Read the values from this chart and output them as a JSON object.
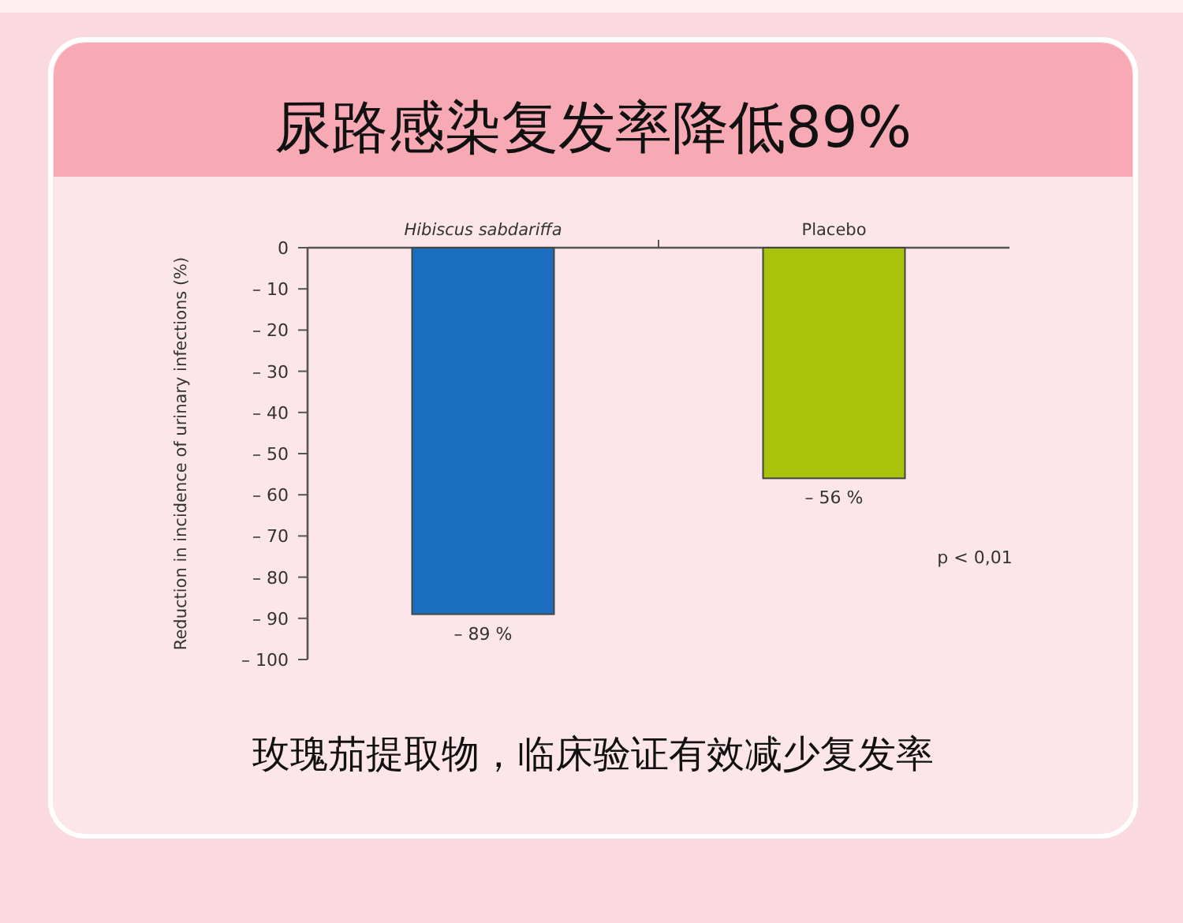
{
  "chart_data": {
    "type": "bar",
    "title": "尿路感染复发率降低89%",
    "ylabel": "Reduction in incidence of urinary infections (%)",
    "categories": [
      "Hibiscus sabdariffa",
      "Placebo"
    ],
    "values": [
      -89,
      -56
    ],
    "colors": [
      "#1a6dbf",
      "#a8c40a"
    ],
    "value_labels": [
      "– 89 %",
      "– 56 %"
    ],
    "ylim": [
      -100,
      0
    ],
    "yticks": [
      0,
      {
        "value": -10,
        "label": "– 10"
      },
      {
        "value": -20,
        "label": "– 20"
      },
      {
        "value": -30,
        "label": "– 30"
      },
      {
        "value": -40,
        "label": "– 40"
      },
      {
        "value": -50,
        "label": "– 50"
      },
      {
        "value": -60,
        "label": "– 60"
      },
      {
        "value": -70,
        "label": "– 70"
      },
      {
        "value": -80,
        "label": "– 80"
      },
      {
        "value": -90,
        "label": "– 90"
      },
      {
        "value": -100,
        "label": "– 100"
      }
    ],
    "annotations": [
      "p < 0,01",
      "玫瑰茄提取物，临床验证有效减少复发率"
    ]
  }
}
